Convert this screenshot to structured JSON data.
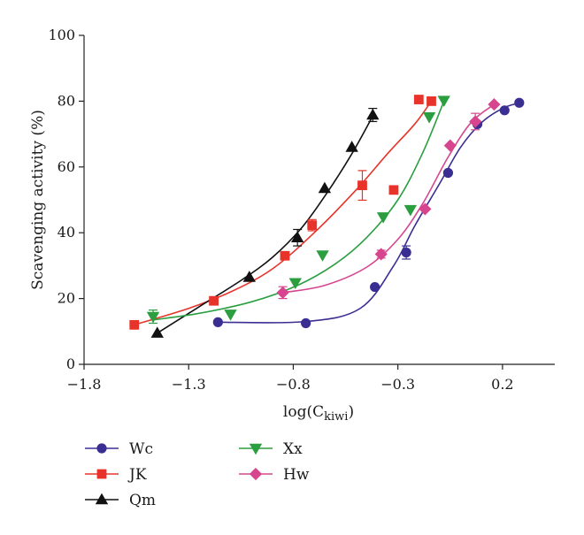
{
  "chart_data": {
    "type": "scatter",
    "title": "",
    "xlabel": "log(C",
    "xlabel_sub": "kiwi",
    "xlabel_close": ")",
    "ylabel": "Scavenging activity (%)",
    "xlim": [
      -1.8,
      0.45
    ],
    "ylim": [
      0,
      100
    ],
    "xticks": [
      -1.8,
      -1.3,
      -0.8,
      -0.3,
      0.2
    ],
    "xtick_labels": [
      "−1.8",
      "−1.3",
      "−0.8",
      "−0.3",
      "0.2"
    ],
    "yticks": [
      0,
      20,
      40,
      60,
      80,
      100
    ],
    "ytick_labels": [
      "0",
      "20",
      "40",
      "60",
      "80",
      "100"
    ],
    "grid": false,
    "legend_position": "bottom",
    "series": [
      {
        "name": "Wc",
        "color": "#3b2e93",
        "marker": "circle",
        "points": [
          {
            "x": -1.16,
            "y": 12.8,
            "err": 0
          },
          {
            "x": -0.74,
            "y": 12.5,
            "err": 0
          },
          {
            "x": -0.41,
            "y": 23.5,
            "err": 0
          },
          {
            "x": -0.26,
            "y": 34.0,
            "err": 2.0
          },
          {
            "x": -0.06,
            "y": 58.2,
            "err": 0
          },
          {
            "x": 0.08,
            "y": 73.0,
            "err": 0
          },
          {
            "x": 0.21,
            "y": 77.2,
            "err": 0
          },
          {
            "x": 0.28,
            "y": 79.5,
            "err": 0
          }
        ],
        "curve": [
          [
            -1.16,
            12.8
          ],
          [
            -0.74,
            13.0
          ],
          [
            -0.48,
            17.0
          ],
          [
            -0.32,
            30.0
          ],
          [
            -0.22,
            42.0
          ],
          [
            -0.1,
            55.0
          ],
          [
            0.0,
            66.0
          ],
          [
            0.1,
            73.5
          ],
          [
            0.2,
            77.8
          ],
          [
            0.28,
            79.5
          ]
        ]
      },
      {
        "name": "JK",
        "color": "#e8332a",
        "marker": "square",
        "points": [
          {
            "x": -1.56,
            "y": 12.0,
            "err": 1.0
          },
          {
            "x": -1.18,
            "y": 19.3,
            "err": 0
          },
          {
            "x": -0.84,
            "y": 33.0,
            "err": 0
          },
          {
            "x": -0.71,
            "y": 42.3,
            "err": 1.7
          },
          {
            "x": -0.47,
            "y": 54.4,
            "err": 4.5
          },
          {
            "x": -0.32,
            "y": 53.0,
            "err": 0
          },
          {
            "x": -0.2,
            "y": 80.5,
            "err": 0
          },
          {
            "x": -0.14,
            "y": 80.0,
            "err": 0
          }
        ],
        "curve": [
          [
            -1.56,
            12.0
          ],
          [
            -1.3,
            17.0
          ],
          [
            -1.1,
            22.0
          ],
          [
            -0.9,
            29.0
          ],
          [
            -0.7,
            40.0
          ],
          [
            -0.5,
            53.0
          ],
          [
            -0.35,
            64.0
          ],
          [
            -0.22,
            73.0
          ],
          [
            -0.14,
            80.0
          ]
        ]
      },
      {
        "name": "Qm",
        "color": "#111111",
        "marker": "triangle-up",
        "points": [
          {
            "x": -1.45,
            "y": 9.5,
            "err": 0
          },
          {
            "x": -1.01,
            "y": 26.5,
            "err": 0
          },
          {
            "x": -0.78,
            "y": 38.5,
            "err": 2.5
          },
          {
            "x": -0.65,
            "y": 53.5,
            "err": 0
          },
          {
            "x": -0.52,
            "y": 66.0,
            "err": 0
          },
          {
            "x": -0.42,
            "y": 75.8,
            "err": 2.0
          }
        ],
        "curve": [
          [
            -1.45,
            9.5
          ],
          [
            -1.25,
            17.5
          ],
          [
            -1.05,
            25.5
          ],
          [
            -0.9,
            32.5
          ],
          [
            -0.76,
            41.5
          ],
          [
            -0.64,
            52.0
          ],
          [
            -0.52,
            64.0
          ],
          [
            -0.42,
            75.5
          ]
        ]
      },
      {
        "name": "Xx",
        "color": "#2b9e3f",
        "marker": "triangle-down",
        "points": [
          {
            "x": -1.47,
            "y": 14.5,
            "err": 2.0
          },
          {
            "x": -1.1,
            "y": 15.2,
            "err": 0
          },
          {
            "x": -0.79,
            "y": 24.8,
            "err": 0
          },
          {
            "x": -0.66,
            "y": 33.2,
            "err": 0
          },
          {
            "x": -0.37,
            "y": 44.8,
            "err": 0
          },
          {
            "x": -0.24,
            "y": 47.0,
            "err": 0
          },
          {
            "x": -0.15,
            "y": 75.2,
            "err": 0
          },
          {
            "x": -0.08,
            "y": 80.2,
            "err": 0
          }
        ],
        "curve": [
          [
            -1.47,
            13.5
          ],
          [
            -1.25,
            15.5
          ],
          [
            -1.0,
            19.0
          ],
          [
            -0.78,
            24.0
          ],
          [
            -0.6,
            30.5
          ],
          [
            -0.45,
            38.5
          ],
          [
            -0.3,
            50.0
          ],
          [
            -0.18,
            64.5
          ],
          [
            -0.08,
            80.0
          ]
        ]
      },
      {
        "name": "Hw",
        "color": "#d6458e",
        "marker": "diamond",
        "points": [
          {
            "x": -0.85,
            "y": 21.8,
            "err": 1.8
          },
          {
            "x": -0.38,
            "y": 33.5,
            "err": 1.2
          },
          {
            "x": -0.17,
            "y": 47.2,
            "err": 0
          },
          {
            "x": -0.05,
            "y": 66.5,
            "err": 0
          },
          {
            "x": 0.07,
            "y": 73.8,
            "err": 2.5
          },
          {
            "x": 0.16,
            "y": 79.0,
            "err": 0
          }
        ],
        "curve": [
          [
            -0.85,
            21.8
          ],
          [
            -0.65,
            24.0
          ],
          [
            -0.45,
            29.5
          ],
          [
            -0.3,
            38.0
          ],
          [
            -0.18,
            49.0
          ],
          [
            -0.06,
            63.0
          ],
          [
            0.05,
            73.5
          ],
          [
            0.16,
            79.0
          ]
        ]
      }
    ]
  }
}
